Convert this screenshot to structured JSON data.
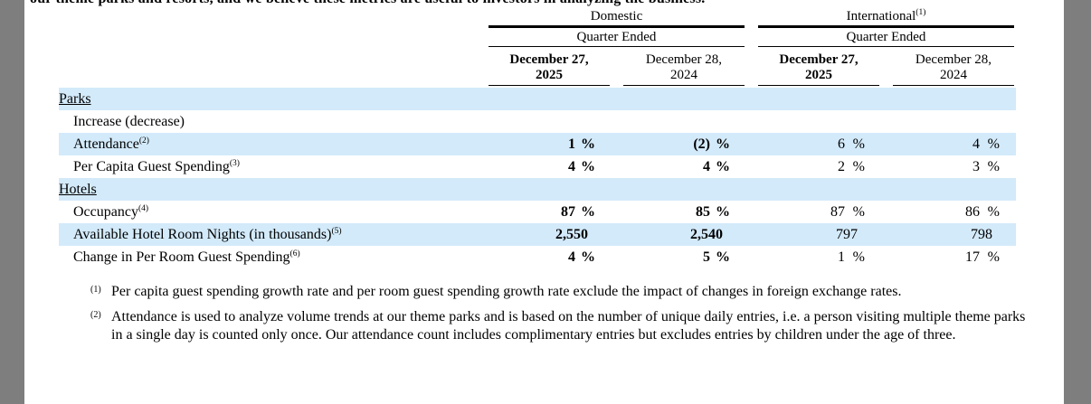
{
  "document": {
    "top_text_fragment": "our theme parks and resorts, and we believe these metrics are useful to investors in analyzing the business."
  },
  "table": {
    "groups": [
      {
        "label": "Domestic",
        "sup": ""
      },
      {
        "label": "International",
        "sup": "(1)"
      }
    ],
    "subheader": "Quarter Ended",
    "columns": [
      {
        "line1": "December 27,",
        "line2": "2025"
      },
      {
        "line1": "December 28,",
        "line2": "2024"
      },
      {
        "line1": "December 27,",
        "line2": "2025"
      },
      {
        "line1": "December 28,",
        "line2": "2024"
      }
    ],
    "rows": [
      {
        "type": "section",
        "label": "Parks",
        "sup": "",
        "shaded": true,
        "values": null,
        "pct": false
      },
      {
        "type": "subheading",
        "label": "Increase (decrease)",
        "sup": "",
        "shaded": false,
        "values": null,
        "pct": false
      },
      {
        "type": "data",
        "label": "Attendance",
        "sup": "(2)",
        "shaded": true,
        "values": [
          "1",
          "(2)",
          "6",
          "4"
        ],
        "pct": true
      },
      {
        "type": "data",
        "label": "Per Capita Guest Spending",
        "sup": "(3)",
        "shaded": false,
        "values": [
          "4",
          "4",
          "2",
          "3"
        ],
        "pct": true
      },
      {
        "type": "section",
        "label": "Hotels",
        "sup": "",
        "shaded": true,
        "values": null,
        "pct": false
      },
      {
        "type": "data",
        "label": "Occupancy",
        "sup": "(4)",
        "shaded": false,
        "values": [
          "87",
          "85",
          "87",
          "86"
        ],
        "pct": true
      },
      {
        "type": "data",
        "label": "Available Hotel Room Nights (in thousands)",
        "sup": "(5)",
        "shaded": true,
        "values": [
          "2,550",
          "2,540",
          "797",
          "798"
        ],
        "pct": false
      },
      {
        "type": "data",
        "label": "Change in Per Room Guest Spending",
        "sup": "(6)",
        "shaded": false,
        "values": [
          "4",
          "5",
          "1",
          "17"
        ],
        "pct": true
      }
    ]
  },
  "footnotes": [
    {
      "marker": "(1)",
      "text": "Per capita guest spending growth rate and per room guest spending growth rate exclude the impact of changes in foreign exchange rates."
    },
    {
      "marker": "(2)",
      "text": "Attendance is used to analyze volume trends at our theme parks and is based on the number of unique daily entries, i.e. a person visiting multiple theme parks in a single day is counted only once. Our attendance count includes complimentary entries but excludes entries by children under the age of three."
    }
  ],
  "colors": {
    "row_highlight": "#d3eafa",
    "margin_gray": "#7e7e7e"
  }
}
